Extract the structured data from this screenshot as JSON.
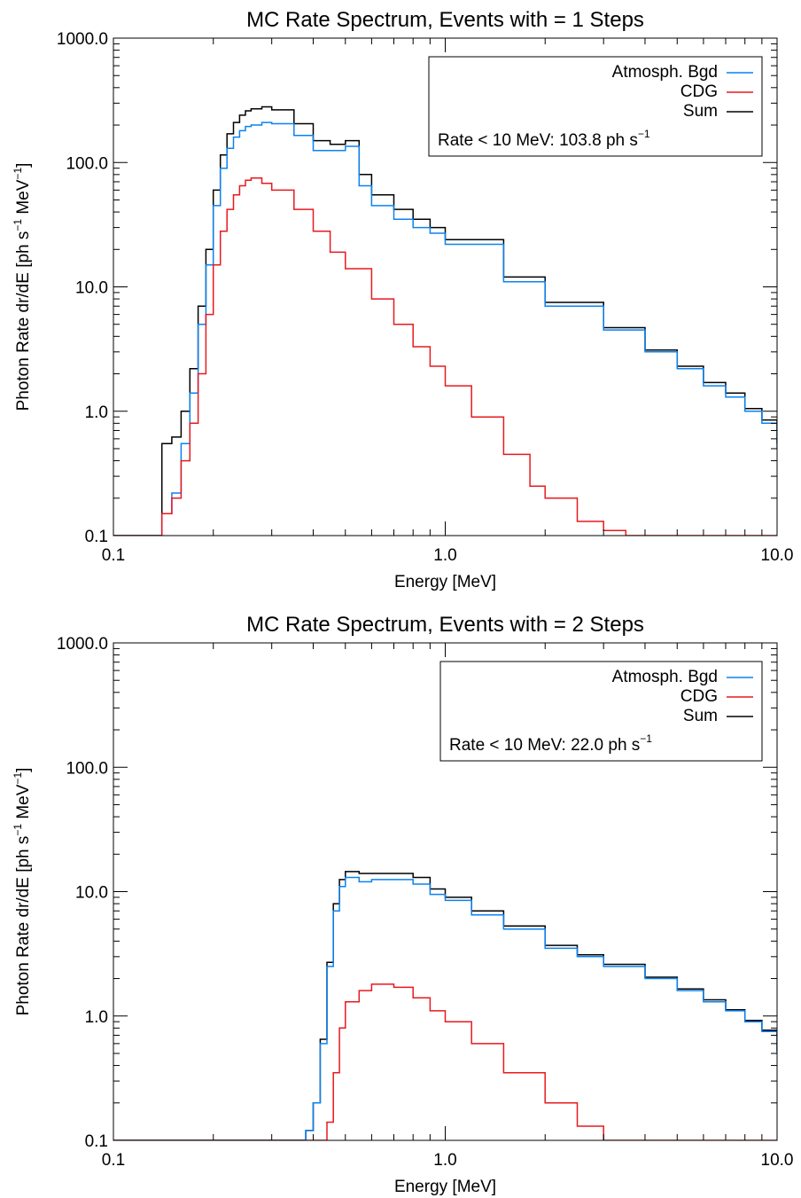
{
  "colors": {
    "atmospheric": "#0a82f0",
    "cdg": "#e8191e",
    "sum": "#000000",
    "axis": "#000000",
    "background": "#ffffff"
  },
  "chart_data": [
    {
      "type": "line",
      "style": "step histogram",
      "title": "MC Rate Spectrum, Events with = 1 Steps",
      "xlabel": "Energy [MeV]",
      "ylabel_prefix": "Photon Rate dr/dE [ph s",
      "ylabel_exp1": "−1",
      "ylabel_mid": " MeV",
      "ylabel_exp2": "−1",
      "ylabel_suffix": "]",
      "xscale": "log",
      "yscale": "log",
      "xlim": [
        0.1,
        10.0
      ],
      "ylim": [
        0.1,
        1000.0
      ],
      "xticks": [
        0.1,
        1.0,
        10.0
      ],
      "xticklabels": [
        "0.1",
        "1.0",
        "10.0"
      ],
      "yticks": [
        0.1,
        1.0,
        10.0,
        100.0,
        1000.0
      ],
      "yticklabels": [
        "0.1",
        "1.0",
        "10.0",
        "100.0",
        "1000.0"
      ],
      "legend_position": "top-right",
      "legend": [
        {
          "name": "Atmosph. Bgd",
          "color": "#0a82f0"
        },
        {
          "name": "CDG",
          "color": "#e8191e"
        },
        {
          "name": "Sum",
          "color": "#000000"
        }
      ],
      "rate_text": "Rate < 10 MeV: 103.8 ph s",
      "rate_exp": "−1",
      "series": [
        {
          "name": "Atmosph. Bgd",
          "color": "#0a82f0",
          "x": [
            0.1,
            0.14,
            0.15,
            0.16,
            0.17,
            0.18,
            0.19,
            0.2,
            0.21,
            0.22,
            0.23,
            0.24,
            0.25,
            0.26,
            0.28,
            0.3,
            0.35,
            0.4,
            0.45,
            0.5,
            0.55,
            0.6,
            0.7,
            0.8,
            0.9,
            1.0,
            1.5,
            2.0,
            3.0,
            4.0,
            5.0,
            6.0,
            7.0,
            8.0,
            9.0,
            10.0
          ],
          "y": [
            0.1,
            0.15,
            0.22,
            0.55,
            1.4,
            5,
            15,
            45,
            90,
            130,
            160,
            180,
            195,
            200,
            210,
            205,
            165,
            125,
            125,
            135,
            65,
            45,
            35,
            30,
            27,
            22,
            11,
            7,
            4.5,
            3,
            2.2,
            1.6,
            1.3,
            1.0,
            0.8,
            0.5
          ]
        },
        {
          "name": "CDG",
          "color": "#e8191e",
          "x": [
            0.1,
            0.14,
            0.15,
            0.16,
            0.17,
            0.18,
            0.19,
            0.2,
            0.21,
            0.22,
            0.23,
            0.24,
            0.25,
            0.26,
            0.28,
            0.3,
            0.35,
            0.4,
            0.45,
            0.5,
            0.6,
            0.7,
            0.8,
            0.9,
            1.0,
            1.2,
            1.5,
            1.8,
            2.0,
            2.5,
            3.0,
            3.5
          ],
          "y": [
            0.1,
            0.15,
            0.2,
            0.4,
            0.8,
            2,
            6,
            15,
            28,
            42,
            55,
            65,
            72,
            75,
            68,
            60,
            42,
            28,
            19,
            14,
            8,
            5,
            3.3,
            2.3,
            1.6,
            0.9,
            0.45,
            0.25,
            0.2,
            0.13,
            0.11,
            0.1
          ]
        },
        {
          "name": "Sum",
          "color": "#000000",
          "x": [
            0.1,
            0.14,
            0.15,
            0.16,
            0.17,
            0.18,
            0.19,
            0.2,
            0.21,
            0.22,
            0.23,
            0.24,
            0.25,
            0.26,
            0.28,
            0.3,
            0.35,
            0.4,
            0.45,
            0.5,
            0.55,
            0.6,
            0.7,
            0.8,
            0.9,
            1.0,
            1.5,
            2.0,
            3.0,
            4.0,
            5.0,
            6.0,
            7.0,
            8.0,
            9.0,
            10.0
          ],
          "y": [
            0.1,
            0.55,
            0.62,
            1.0,
            2.2,
            7,
            20,
            60,
            115,
            170,
            210,
            240,
            260,
            270,
            280,
            265,
            205,
            150,
            140,
            150,
            80,
            55,
            42,
            35,
            30,
            24,
            12,
            7.5,
            4.7,
            3.1,
            2.3,
            1.7,
            1.4,
            1.05,
            0.85,
            0.55
          ]
        }
      ]
    },
    {
      "type": "line",
      "style": "step histogram",
      "title": "MC Rate Spectrum, Events with = 2 Steps",
      "xlabel": "Energy [MeV]",
      "ylabel_prefix": "Photon Rate dr/dE [ph s",
      "ylabel_exp1": "−1",
      "ylabel_mid": " MeV",
      "ylabel_exp2": "−1",
      "ylabel_suffix": "]",
      "xscale": "log",
      "yscale": "log",
      "xlim": [
        0.1,
        10.0
      ],
      "ylim": [
        0.1,
        1000.0
      ],
      "xticks": [
        0.1,
        1.0,
        10.0
      ],
      "xticklabels": [
        "0.1",
        "1.0",
        "10.0"
      ],
      "yticks": [
        0.1,
        1.0,
        10.0,
        100.0,
        1000.0
      ],
      "yticklabels": [
        "0.1",
        "1.0",
        "10.0",
        "100.0",
        "1000.0"
      ],
      "legend_position": "top-right",
      "legend": [
        {
          "name": "Atmosph. Bgd",
          "color": "#0a82f0"
        },
        {
          "name": "CDG",
          "color": "#e8191e"
        },
        {
          "name": "Sum",
          "color": "#000000"
        }
      ],
      "rate_text": "Rate < 10 MeV: 22.0 ph s",
      "rate_exp": "−1",
      "series": [
        {
          "name": "Atmosph. Bgd",
          "color": "#0a82f0",
          "x": [
            0.1,
            0.38,
            0.4,
            0.42,
            0.44,
            0.46,
            0.48,
            0.5,
            0.55,
            0.6,
            0.7,
            0.8,
            0.9,
            1.0,
            1.2,
            1.5,
            2.0,
            2.5,
            3.0,
            4.0,
            5.0,
            6.0,
            7.0,
            8.0,
            9.0,
            10.0
          ],
          "y": [
            0.1,
            0.12,
            0.2,
            0.6,
            2.5,
            7,
            11,
            13,
            12,
            12.5,
            12.5,
            11.5,
            9.5,
            8.5,
            6.5,
            5,
            3.5,
            3,
            2.5,
            2,
            1.6,
            1.3,
            1.1,
            0.9,
            0.75,
            0.5
          ]
        },
        {
          "name": "CDG",
          "color": "#e8191e",
          "x": [
            0.1,
            0.44,
            0.46,
            0.48,
            0.5,
            0.55,
            0.6,
            0.7,
            0.8,
            0.9,
            1.0,
            1.2,
            1.5,
            2.0,
            2.5,
            3.0
          ],
          "y": [
            0.1,
            0.14,
            0.35,
            0.8,
            1.3,
            1.6,
            1.8,
            1.7,
            1.4,
            1.1,
            0.9,
            0.6,
            0.35,
            0.2,
            0.13,
            0.1
          ]
        },
        {
          "name": "Sum",
          "color": "#000000",
          "x": [
            0.1,
            0.38,
            0.4,
            0.42,
            0.44,
            0.46,
            0.48,
            0.5,
            0.55,
            0.6,
            0.7,
            0.8,
            0.9,
            1.0,
            1.2,
            1.5,
            2.0,
            2.5,
            3.0,
            4.0,
            5.0,
            6.0,
            7.0,
            8.0,
            9.0,
            10.0
          ],
          "y": [
            0.1,
            0.12,
            0.2,
            0.65,
            2.7,
            8,
            12.5,
            14.5,
            14,
            14,
            14,
            13,
            10.5,
            9,
            7,
            5.3,
            3.7,
            3.1,
            2.6,
            2.05,
            1.65,
            1.35,
            1.12,
            0.92,
            0.77,
            0.52
          ]
        }
      ]
    }
  ]
}
